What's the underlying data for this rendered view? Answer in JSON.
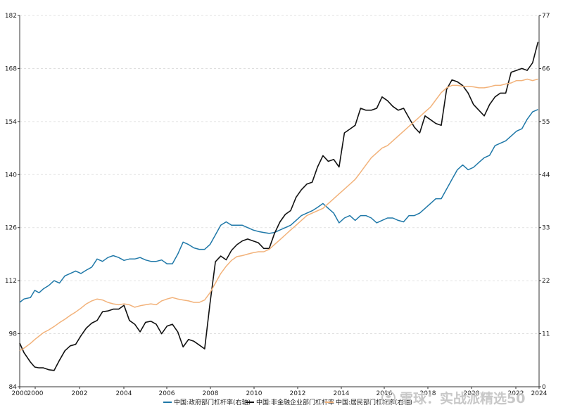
{
  "chart_data": {
    "type": "line",
    "title": "",
    "left_axis": {
      "ticks": [
        84,
        98,
        112,
        126,
        140,
        154,
        168,
        182
      ],
      "range": [
        84,
        182
      ]
    },
    "right_axis": {
      "ticks": [
        0,
        11,
        22,
        33,
        44,
        55,
        66,
        77
      ],
      "range": [
        0,
        77
      ]
    },
    "x_axis": {
      "ticks": [
        "2000",
        "2000",
        "2002",
        "2004",
        "2006",
        "2008",
        "2010",
        "2012",
        "2014",
        "2016",
        "2018",
        "2020",
        "2022",
        "2024"
      ]
    },
    "grid": "horizontal dashed",
    "legend_position": "bottom",
    "series": [
      {
        "name": "中国:政府部门杠杆率(右轴)",
        "axis": "right",
        "color": "#1f78a8",
        "values": [
          17.5,
          18.2,
          18.5,
          20.0,
          19.5,
          20.3,
          21.0,
          22.0,
          21.5,
          23.0,
          23.5,
          24.0,
          23.5,
          24.2,
          24.8,
          26.5,
          26.0,
          26.8,
          27.2,
          26.8,
          26.2,
          26.5,
          26.5,
          26.8,
          26.3,
          26.0,
          26.0,
          26.3,
          25.5,
          25.5,
          27.5,
          30.0,
          29.5,
          28.8,
          28.5,
          28.5,
          29.5,
          31.5,
          33.5,
          34.2,
          33.5,
          33.5,
          33.5,
          33.0,
          32.5,
          32.2,
          32.0,
          31.8,
          32.0,
          32.5,
          33.0,
          33.5,
          34.5,
          35.5,
          36.0,
          36.5,
          37.2,
          38.0,
          37.0,
          36.0,
          34.0,
          35.0,
          35.5,
          34.5,
          35.5,
          35.5,
          35.0,
          34.0,
          34.5,
          35.0,
          35.0,
          34.5,
          34.2,
          35.5,
          35.5,
          36.0,
          37.0,
          38.0,
          39.0,
          39.0,
          41.0,
          43.0,
          45.0,
          46.0,
          45.0,
          45.5,
          46.5,
          47.5,
          48.0,
          50.0,
          50.5,
          51.0,
          52.0,
          53.0,
          53.5,
          55.5,
          57.0,
          57.5
        ],
        "x": [
          1999.9,
          2000.1,
          2000.4,
          2000.6,
          2000.8,
          2001.0,
          2001.25,
          2001.5,
          2001.75,
          2002.0,
          2002.25,
          2002.5,
          2002.75,
          2003.0,
          2003.25,
          2003.5,
          2003.75,
          2004.0,
          2004.25,
          2004.5,
          2004.75,
          2005.0,
          2005.25,
          2005.5,
          2005.75,
          2006.0,
          2006.25,
          2006.5,
          2006.75,
          2007.0,
          2007.25,
          2007.5,
          2007.75,
          2008.0,
          2008.25,
          2008.5,
          2008.75,
          2009.0,
          2009.25,
          2009.5,
          2009.75,
          2010.0,
          2010.25,
          2010.5,
          2010.75,
          2011.0,
          2011.25,
          2011.5,
          2011.75,
          2012.0,
          2012.25,
          2012.5,
          2012.75,
          2013.0,
          2013.25,
          2013.5,
          2013.75,
          2014.0,
          2014.25,
          2014.5,
          2014.75,
          2015.0,
          2015.25,
          2015.5,
          2015.75,
          2016.0,
          2016.25,
          2016.5,
          2016.75,
          2017.0,
          2017.25,
          2017.5,
          2017.75,
          2018.0,
          2018.25,
          2018.5,
          2018.75,
          2019.0,
          2019.25,
          2019.5,
          2019.75,
          2020.0,
          2020.25,
          2020.5,
          2020.75,
          2021.0,
          2021.25,
          2021.5,
          2021.75,
          2022.0,
          2022.25,
          2022.5,
          2022.75,
          2023.0,
          2023.25,
          2023.5,
          2023.75,
          2024.0
        ]
      },
      {
        "name": "中国:非金融企业部门杠杆率",
        "axis": "left",
        "color": "#111111",
        "values": [
          95.5,
          93.0,
          90.5,
          89.2,
          89.0,
          89.0,
          88.5,
          88.3,
          91.0,
          93.5,
          94.8,
          95.2,
          97.5,
          99.5,
          100.8,
          101.5,
          103.8,
          104.0,
          104.5,
          104.5,
          105.5,
          101.5,
          100.5,
          98.5,
          101.0,
          101.3,
          100.5,
          98.0,
          100.0,
          100.5,
          98.5,
          94.5,
          96.5,
          96.0,
          95.0,
          94.0,
          106.0,
          117.0,
          118.5,
          117.5,
          120.0,
          121.5,
          122.5,
          123.0,
          122.5,
          122.0,
          120.5,
          120.5,
          124.5,
          127.5,
          129.5,
          130.5,
          134.0,
          136.0,
          137.5,
          138.0,
          142.0,
          145.0,
          143.5,
          144.0,
          142.0,
          151.0,
          152.0,
          153.0,
          157.5,
          157.0,
          157.0,
          157.5,
          160.5,
          159.5,
          158.0,
          157.0,
          157.5,
          155.0,
          152.5,
          151.0,
          155.5,
          154.5,
          153.5,
          153.0,
          162.5,
          165.0,
          164.5,
          163.5,
          161.5,
          158.5,
          157.0,
          155.5,
          158.5,
          160.5,
          161.5,
          161.5,
          167.0,
          167.5,
          168.0,
          167.5,
          169.5,
          175.0
        ],
        "x": [
          1999.9,
          2000.1,
          2000.4,
          2000.6,
          2000.8,
          2001.0,
          2001.25,
          2001.5,
          2001.75,
          2002.0,
          2002.25,
          2002.5,
          2002.75,
          2003.0,
          2003.25,
          2003.5,
          2003.75,
          2004.0,
          2004.25,
          2004.5,
          2004.75,
          2005.0,
          2005.25,
          2005.5,
          2005.75,
          2006.0,
          2006.25,
          2006.5,
          2006.75,
          2007.0,
          2007.25,
          2007.5,
          2007.75,
          2008.0,
          2008.25,
          2008.5,
          2008.75,
          2009.0,
          2009.25,
          2009.5,
          2009.75,
          2010.0,
          2010.25,
          2010.5,
          2010.75,
          2011.0,
          2011.25,
          2011.5,
          2011.75,
          2012.0,
          2012.25,
          2012.5,
          2012.75,
          2013.0,
          2013.25,
          2013.5,
          2013.75,
          2014.0,
          2014.25,
          2014.5,
          2014.75,
          2015.0,
          2015.25,
          2015.5,
          2015.75,
          2016.0,
          2016.25,
          2016.5,
          2016.75,
          2017.0,
          2017.25,
          2017.5,
          2017.75,
          2018.0,
          2018.25,
          2018.5,
          2018.75,
          2019.0,
          2019.25,
          2019.5,
          2019.75,
          2020.0,
          2020.25,
          2020.5,
          2020.75,
          2021.0,
          2021.25,
          2021.5,
          2021.75,
          2022.0,
          2022.25,
          2022.5,
          2022.75,
          2023.0,
          2023.25,
          2023.5,
          2023.75,
          2024.0
        ]
      },
      {
        "name": "中国:居民部门杠杆率(右轴)",
        "axis": "right",
        "color": "#f2b27a",
        "values": [
          7.5,
          8.0,
          9.0,
          9.8,
          10.5,
          11.2,
          11.8,
          12.5,
          13.3,
          14.0,
          14.8,
          15.5,
          16.3,
          17.2,
          17.8,
          18.2,
          18.0,
          17.5,
          17.2,
          17.0,
          17.2,
          17.0,
          16.5,
          16.8,
          17.0,
          17.2,
          17.0,
          17.8,
          18.2,
          18.5,
          18.2,
          18.0,
          17.8,
          17.5,
          17.5,
          18.0,
          19.5,
          21.5,
          23.5,
          25.0,
          26.2,
          27.0,
          27.2,
          27.5,
          27.8,
          28.0,
          28.0,
          28.5,
          29.5,
          30.5,
          31.5,
          32.5,
          33.5,
          34.5,
          35.5,
          36.0,
          36.5,
          37.0,
          38.0,
          39.0,
          40.0,
          41.0,
          42.0,
          43.0,
          44.5,
          46.0,
          47.5,
          48.5,
          49.5,
          50.0,
          51.0,
          52.0,
          53.0,
          54.0,
          55.0,
          56.0,
          57.0,
          58.0,
          59.5,
          61.0,
          62.0,
          62.5,
          62.5,
          62.3,
          62.3,
          62.2,
          62.0,
          62.0,
          62.2,
          62.5,
          62.5,
          62.8,
          63.0,
          63.5,
          63.5,
          63.8,
          63.5,
          63.8
        ],
        "x": [
          1999.9,
          2000.1,
          2000.4,
          2000.6,
          2000.8,
          2001.0,
          2001.25,
          2001.5,
          2001.75,
          2002.0,
          2002.25,
          2002.5,
          2002.75,
          2003.0,
          2003.25,
          2003.5,
          2003.75,
          2004.0,
          2004.25,
          2004.5,
          2004.75,
          2005.0,
          2005.25,
          2005.5,
          2005.75,
          2006.0,
          2006.25,
          2006.5,
          2006.75,
          2007.0,
          2007.25,
          2007.5,
          2007.75,
          2008.0,
          2008.25,
          2008.5,
          2008.75,
          2009.0,
          2009.25,
          2009.5,
          2009.75,
          2010.0,
          2010.25,
          2010.5,
          2010.75,
          2011.0,
          2011.25,
          2011.5,
          2011.75,
          2012.0,
          2012.25,
          2012.5,
          2012.75,
          2013.0,
          2013.25,
          2013.5,
          2013.75,
          2014.0,
          2014.25,
          2014.5,
          2014.75,
          2015.0,
          2015.25,
          2015.5,
          2015.75,
          2016.0,
          2016.25,
          2016.5,
          2016.75,
          2017.0,
          2017.25,
          2017.5,
          2017.75,
          2018.0,
          2018.25,
          2018.5,
          2018.75,
          2019.0,
          2019.25,
          2019.5,
          2019.75,
          2020.0,
          2020.25,
          2020.5,
          2020.75,
          2021.0,
          2021.25,
          2021.5,
          2021.75,
          2022.0,
          2022.25,
          2022.5,
          2022.75,
          2023.0,
          2023.25,
          2023.5,
          2023.75,
          2024.0
        ]
      }
    ]
  },
  "watermark": {
    "text": "雪球：实战派精选50",
    "icon": "snowball-logo-icon"
  }
}
